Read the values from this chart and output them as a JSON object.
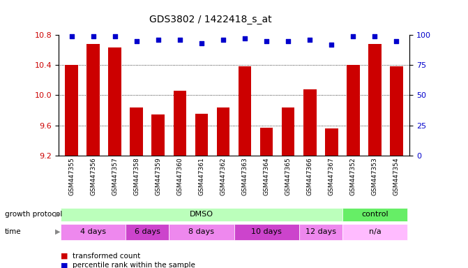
{
  "title": "GDS3802 / 1422418_s_at",
  "samples": [
    "GSM447355",
    "GSM447356",
    "GSM447357",
    "GSM447358",
    "GSM447359",
    "GSM447360",
    "GSM447361",
    "GSM447362",
    "GSM447363",
    "GSM447364",
    "GSM447365",
    "GSM447366",
    "GSM447367",
    "GSM447352",
    "GSM447353",
    "GSM447354"
  ],
  "red_values": [
    10.4,
    10.68,
    10.63,
    9.84,
    9.74,
    10.06,
    9.75,
    9.84,
    10.38,
    9.57,
    9.84,
    10.08,
    9.56,
    10.4,
    10.68,
    10.38
  ],
  "blue_values": [
    99,
    99,
    99,
    95,
    96,
    96,
    93,
    96,
    97,
    95,
    95,
    96,
    92,
    99,
    99,
    95
  ],
  "ylim_left": [
    9.2,
    10.8
  ],
  "ylim_right": [
    0,
    100
  ],
  "yticks_left": [
    9.2,
    9.6,
    10.0,
    10.4,
    10.8
  ],
  "yticks_right": [
    0,
    25,
    50,
    75,
    100
  ],
  "grid_values": [
    9.6,
    10.0,
    10.4
  ],
  "growth_protocol_groups": [
    {
      "label": "DMSO",
      "start": 0,
      "end": 13,
      "color": "#bbffbb"
    },
    {
      "label": "control",
      "start": 13,
      "end": 16,
      "color": "#66ee66"
    }
  ],
  "time_groups": [
    {
      "label": "4 days",
      "start": 0,
      "end": 3,
      "color": "#ee88ee"
    },
    {
      "label": "6 days",
      "start": 3,
      "end": 5,
      "color": "#cc44cc"
    },
    {
      "label": "8 days",
      "start": 5,
      "end": 8,
      "color": "#ee88ee"
    },
    {
      "label": "10 days",
      "start": 8,
      "end": 11,
      "color": "#cc44cc"
    },
    {
      "label": "12 days",
      "start": 11,
      "end": 13,
      "color": "#ee88ee"
    },
    {
      "label": "n/a",
      "start": 13,
      "end": 16,
      "color": "#ffbbff"
    }
  ],
  "bar_color": "#cc0000",
  "dot_color": "#0000cc",
  "bg_color": "#ffffff",
  "label_color_left": "#cc0000",
  "label_color_right": "#0000cc",
  "bar_width": 0.6,
  "dot_size": 22
}
